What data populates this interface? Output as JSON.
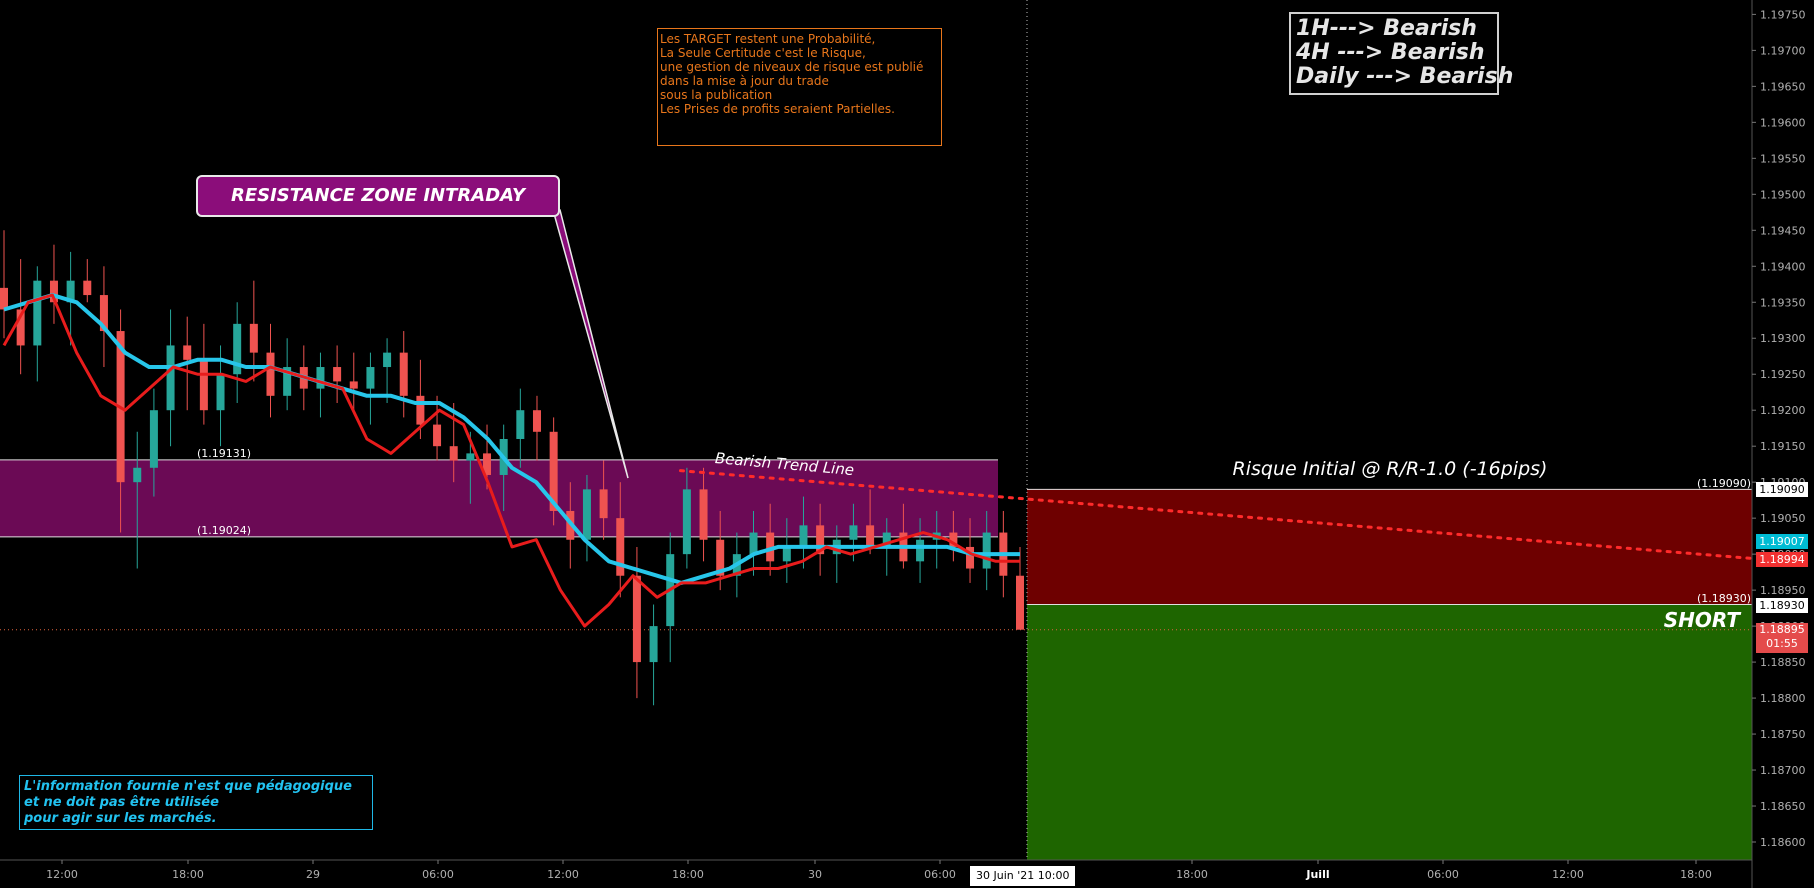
{
  "chart_data": {
    "type": "candlestick",
    "symbol_hint": "",
    "price_axis": {
      "ticks": [
        "1.19750",
        "1.19700",
        "1.19650",
        "1.19600",
        "1.19550",
        "1.19500",
        "1.19450",
        "1.19400",
        "1.19350",
        "1.19300",
        "1.19250",
        "1.19200",
        "1.19150",
        "1.19100",
        "1.19050",
        "1.19000",
        "1.18950",
        "1.18900",
        "1.18850",
        "1.18800",
        "1.18750",
        "1.18700",
        "1.18650",
        "1.18600"
      ],
      "range": [
        1.18575,
        1.1977
      ]
    },
    "time_axis": {
      "ticks": [
        "12:00",
        "18:00",
        "29",
        "06:00",
        "12:00",
        "18:00",
        "30",
        "06:00",
        "18:00",
        "Juill",
        "06:00",
        "12:00",
        "18:00"
      ],
      "cursor_label": "30 Juin '21   10:00"
    },
    "zones": {
      "resistance_top": 1.19131,
      "resistance_bottom": 1.19024,
      "resistance_top_label": "(1.19131)",
      "resistance_bottom_label": "(1.19024)",
      "risk_top": 1.1909,
      "risk_bottom": 1.1893,
      "risk_top_label": "(1.19090)",
      "risk_bottom_label": "(1.18930)",
      "target_bottom": 1.18575
    },
    "price_badges": {
      "risk_top": "1.19090",
      "ema_value": "1.19007",
      "ema_fast_value": "1.18994",
      "risk_bottom": "1.18930",
      "last_price": "1.18895",
      "countdown": "01:55"
    },
    "series": [
      {
        "name": "",
        "kind": "ema_slow",
        "color": "#27c6ea",
        "values": [
          1.1934,
          1.1935,
          1.1936,
          1.1935,
          1.1932,
          1.1928,
          1.1926,
          1.1926,
          1.1927,
          1.1927,
          1.1926,
          1.1926,
          1.1925,
          1.1924,
          1.1923,
          1.1922,
          1.1922,
          1.1921,
          1.1921,
          1.1919,
          1.1916,
          1.1912,
          1.191,
          1.1906,
          1.1902,
          1.1899,
          1.1898,
          1.1897,
          1.1896,
          1.1897,
          1.1898,
          1.19,
          1.1901,
          1.1901,
          1.1901,
          1.1901,
          1.1901,
          1.1901,
          1.1901,
          1.1901,
          1.19,
          1.19,
          1.19
        ]
      },
      {
        "name": "",
        "kind": "ema_fast",
        "color": "#e81c1c",
        "values": [
          1.1929,
          1.1935,
          1.1936,
          1.1928,
          1.1922,
          1.192,
          1.1923,
          1.1926,
          1.1925,
          1.1925,
          1.1924,
          1.1926,
          1.1925,
          1.1924,
          1.1923,
          1.1916,
          1.1914,
          1.1917,
          1.192,
          1.1918,
          1.191,
          1.1901,
          1.1902,
          1.1895,
          1.189,
          1.1893,
          1.1897,
          1.1894,
          1.1896,
          1.1896,
          1.1897,
          1.1898,
          1.1898,
          1.1899,
          1.1901,
          1.19,
          1.1901,
          1.1902,
          1.1903,
          1.1902,
          1.19,
          1.1899,
          1.1899
        ]
      },
      {
        "name": "",
        "kind": "trend_line",
        "color": "#ff2a2a",
        "x": [
          0.3747,
          1.0
        ],
        "values": [
          1.19116,
          1.18994
        ]
      }
    ],
    "candles": [
      [
        1.1937,
        1.1945,
        1.193,
        1.1934
      ],
      [
        1.1934,
        1.1941,
        1.1925,
        1.1929
      ],
      [
        1.1929,
        1.194,
        1.1924,
        1.1938
      ],
      [
        1.1938,
        1.1943,
        1.1932,
        1.1935
      ],
      [
        1.1935,
        1.1942,
        1.1929,
        1.1938
      ],
      [
        1.1938,
        1.1941,
        1.1935,
        1.1936
      ],
      [
        1.1936,
        1.194,
        1.1926,
        1.1931
      ],
      [
        1.1931,
        1.1934,
        1.1903,
        1.191
      ],
      [
        1.191,
        1.1917,
        1.1898,
        1.1912
      ],
      [
        1.1912,
        1.1923,
        1.1908,
        1.192
      ],
      [
        1.192,
        1.1934,
        1.1915,
        1.1929
      ],
      [
        1.1929,
        1.1933,
        1.192,
        1.1927
      ],
      [
        1.1927,
        1.1932,
        1.1918,
        1.192
      ],
      [
        1.192,
        1.1929,
        1.1915,
        1.1925
      ],
      [
        1.1925,
        1.1935,
        1.1921,
        1.1932
      ],
      [
        1.1932,
        1.1938,
        1.1924,
        1.1928
      ],
      [
        1.1928,
        1.1932,
        1.1919,
        1.1922
      ],
      [
        1.1922,
        1.193,
        1.192,
        1.1926
      ],
      [
        1.1926,
        1.1929,
        1.192,
        1.1923
      ],
      [
        1.1923,
        1.1928,
        1.1919,
        1.1926
      ],
      [
        1.1926,
        1.1929,
        1.1921,
        1.1924
      ],
      [
        1.1924,
        1.1928,
        1.192,
        1.1923
      ],
      [
        1.1923,
        1.1928,
        1.1918,
        1.1926
      ],
      [
        1.1926,
        1.193,
        1.1921,
        1.1928
      ],
      [
        1.1928,
        1.1931,
        1.1919,
        1.1922
      ],
      [
        1.1922,
        1.1927,
        1.1916,
        1.1918
      ],
      [
        1.1918,
        1.1922,
        1.1913,
        1.1915
      ],
      [
        1.1915,
        1.1921,
        1.191,
        1.1913
      ],
      [
        1.1913,
        1.1917,
        1.1907,
        1.1914
      ],
      [
        1.1914,
        1.1918,
        1.1909,
        1.1911
      ],
      [
        1.1911,
        1.1918,
        1.1906,
        1.1916
      ],
      [
        1.1916,
        1.1923,
        1.1912,
        1.192
      ],
      [
        1.192,
        1.1922,
        1.1913,
        1.1917
      ],
      [
        1.1917,
        1.1919,
        1.1904,
        1.1906
      ],
      [
        1.1906,
        1.191,
        1.1898,
        1.1902
      ],
      [
        1.1902,
        1.1911,
        1.1899,
        1.1909
      ],
      [
        1.1909,
        1.1913,
        1.1902,
        1.1905
      ],
      [
        1.1905,
        1.191,
        1.1894,
        1.1897
      ],
      [
        1.1897,
        1.1901,
        1.188,
        1.1885
      ],
      [
        1.1885,
        1.1893,
        1.1879,
        1.189
      ],
      [
        1.189,
        1.1903,
        1.1885,
        1.19
      ],
      [
        1.19,
        1.1912,
        1.1898,
        1.1909
      ],
      [
        1.1909,
        1.1912,
        1.1899,
        1.1902
      ],
      [
        1.1902,
        1.1906,
        1.1895,
        1.1897
      ],
      [
        1.1897,
        1.1903,
        1.1894,
        1.19
      ],
      [
        1.19,
        1.1906,
        1.1897,
        1.1903
      ],
      [
        1.1903,
        1.1907,
        1.1897,
        1.1899
      ],
      [
        1.1899,
        1.1905,
        1.1896,
        1.1901
      ],
      [
        1.1901,
        1.1908,
        1.1898,
        1.1904
      ],
      [
        1.1904,
        1.1907,
        1.1897,
        1.19
      ],
      [
        1.19,
        1.1904,
        1.1896,
        1.1902
      ],
      [
        1.1902,
        1.1907,
        1.1899,
        1.1904
      ],
      [
        1.1904,
        1.1909,
        1.19,
        1.1901
      ],
      [
        1.1901,
        1.1905,
        1.1897,
        1.1903
      ],
      [
        1.1903,
        1.1907,
        1.1898,
        1.1899
      ],
      [
        1.1899,
        1.1905,
        1.1896,
        1.1902
      ],
      [
        1.1902,
        1.1906,
        1.1898,
        1.1903
      ],
      [
        1.1903,
        1.1906,
        1.1899,
        1.1901
      ],
      [
        1.1901,
        1.1905,
        1.1896,
        1.1898
      ],
      [
        1.1898,
        1.1906,
        1.1895,
        1.1903
      ],
      [
        1.1903,
        1.1906,
        1.1894,
        1.1897
      ],
      [
        1.1897,
        1.1901,
        1.189,
        1.18895
      ]
    ]
  },
  "texts": {
    "callout": "RESISTANCE ZONE INTRADAY",
    "risk_label": "Risque Initial @ R/R-1.0 (-16pips)",
    "short_label": "SHORT",
    "trend_line_label": "Bearish Trend Line",
    "orange_note": [
      "Les TARGET restent une Probabilité,",
      "La Seule Certitude c'est le Risque,",
      "",
      "une gestion de niveaux de risque est publié",
      "dans la mise à jour du trade",
      "sous la publication",
      "",
      "Les Prises de profits seraient Partielles."
    ],
    "trend_note": [
      "1H---> Bearish",
      "4H ---> Bearish",
      "Daily ---> Bearish"
    ],
    "disclaimer": [
      "L'information fournie n'est que pédagogique",
      "et ne doit pas être utilisée",
      "pour agir sur les marchés."
    ]
  },
  "colors": {
    "background": "#000000",
    "resistance_zone": "#6b0a55",
    "risk_zone": "#6e0000",
    "target_zone": "#1e6500",
    "up_candle": "#26a69a",
    "down_candle": "#ef5350",
    "ema_slow": "#27c6ea",
    "ema_fast": "#e81c1c",
    "trend_line": "#ff2a2a",
    "callout_bg": "#8b0d7a"
  }
}
